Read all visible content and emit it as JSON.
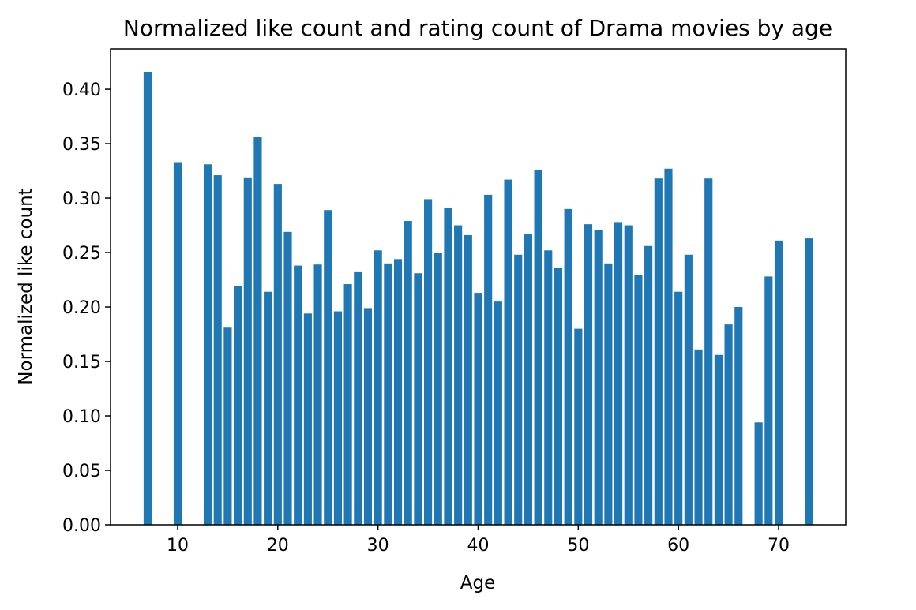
{
  "chart_data": {
    "type": "bar",
    "title": "Normalized like count and rating count of Drama movies by age",
    "xlabel": "Age",
    "ylabel": "Normalized like count",
    "xlim": [
      3.3,
      76.7
    ],
    "ylim": [
      0,
      0.437
    ],
    "xticks": [
      10,
      20,
      30,
      40,
      50,
      60,
      70
    ],
    "yticks": [
      0.0,
      0.05,
      0.1,
      0.15,
      0.2,
      0.25,
      0.3,
      0.35,
      0.4
    ],
    "ytick_labels": [
      "0.00",
      "0.05",
      "0.10",
      "0.15",
      "0.20",
      "0.25",
      "0.30",
      "0.35",
      "0.40"
    ],
    "xtick_labels": [
      "10",
      "20",
      "30",
      "40",
      "50",
      "60",
      "70"
    ],
    "bar_color": "#1f77b4",
    "bar_width": 0.8,
    "grid": false,
    "x": [
      7,
      10,
      13,
      14,
      15,
      16,
      17,
      18,
      19,
      20,
      21,
      22,
      23,
      24,
      25,
      26,
      27,
      28,
      29,
      30,
      31,
      32,
      33,
      34,
      35,
      36,
      37,
      38,
      39,
      40,
      41,
      42,
      43,
      44,
      45,
      46,
      47,
      48,
      49,
      50,
      51,
      52,
      53,
      54,
      55,
      56,
      57,
      58,
      59,
      60,
      61,
      62,
      63,
      64,
      65,
      66,
      68,
      69,
      70,
      73
    ],
    "values": [
      0.416,
      0.333,
      0.331,
      0.321,
      0.181,
      0.219,
      0.319,
      0.356,
      0.214,
      0.313,
      0.269,
      0.238,
      0.194,
      0.239,
      0.289,
      0.196,
      0.221,
      0.232,
      0.199,
      0.252,
      0.24,
      0.244,
      0.279,
      0.231,
      0.299,
      0.25,
      0.291,
      0.275,
      0.266,
      0.213,
      0.303,
      0.205,
      0.317,
      0.248,
      0.267,
      0.326,
      0.252,
      0.236,
      0.29,
      0.18,
      0.276,
      0.271,
      0.24,
      0.278,
      0.275,
      0.229,
      0.256,
      0.318,
      0.327,
      0.214,
      0.248,
      0.161,
      0.318,
      0.156,
      0.184,
      0.2,
      0.094,
      0.228,
      0.261,
      0.263
    ]
  }
}
